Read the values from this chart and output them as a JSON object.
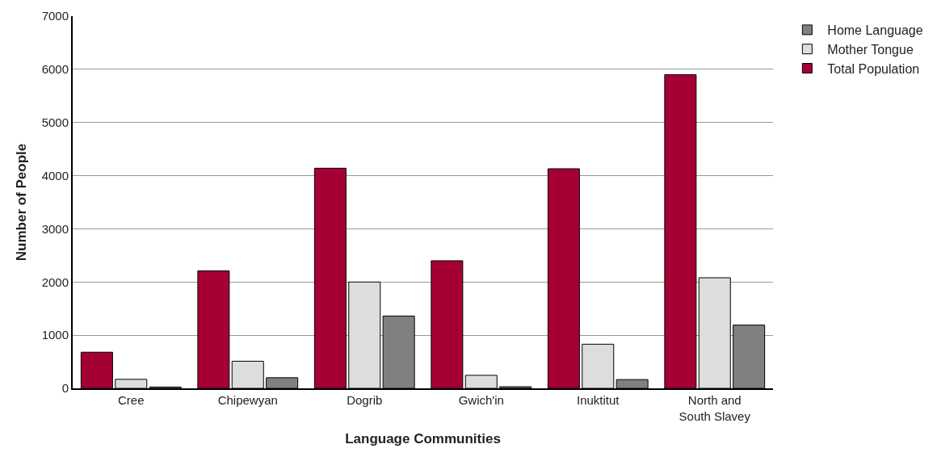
{
  "chart_data": {
    "type": "bar",
    "xlabel": "Language Communities",
    "ylabel": "Number of People",
    "categories": [
      "Cree",
      "Chipewyan",
      "Dogrib",
      "Gwich'in",
      "Inuktitut",
      "North and South Slavey"
    ],
    "series": [
      {
        "name": "Total Population",
        "color": "#a50034",
        "values": [
          680,
          2210,
          4140,
          2400,
          4130,
          5900
        ]
      },
      {
        "name": "Mother Tongue",
        "color": "#dddddd",
        "values": [
          170,
          510,
          2000,
          245,
          830,
          2080
        ]
      },
      {
        "name": "Home Language",
        "color": "#808080",
        "values": [
          25,
          200,
          1360,
          30,
          165,
          1190
        ]
      }
    ],
    "ylim": [
      0,
      7000
    ],
    "yticks": [
      0,
      1000,
      2000,
      3000,
      4000,
      5000,
      6000,
      7000
    ],
    "grid": "y",
    "legend": "top right"
  }
}
